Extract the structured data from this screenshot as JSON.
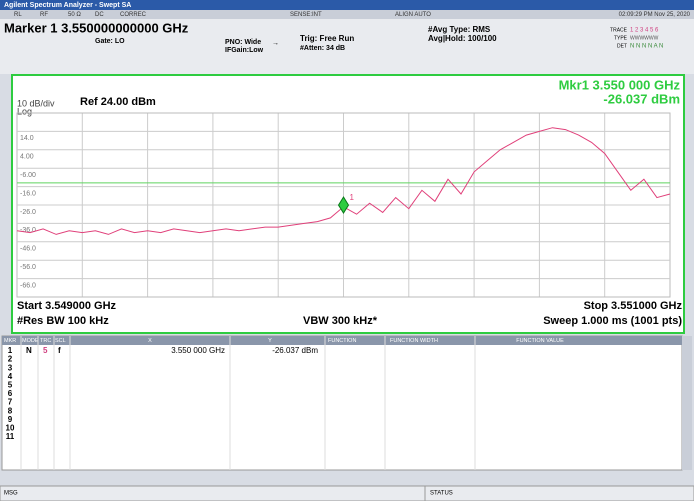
{
  "title_bar": "Agilent Spectrum Analyzer - Swept SA",
  "status_bar": {
    "items": [
      "RL",
      "RF",
      "50 Ω",
      "DC",
      "CORREC",
      "SENSE:INT",
      "ALIGN AUTO"
    ],
    "datetime": "02:09:29 PM Nov 25, 2020"
  },
  "header": {
    "marker": "Marker 1 3.550000000000 GHz",
    "gate": "Gate: LO",
    "pno": "PNO: Wide",
    "ifgain": "IFGain:Low",
    "trig": "Trig: Free Run",
    "atten": "#Atten: 34 dB",
    "avg_type": "#Avg Type: RMS",
    "avg_hold": "Avg|Hold: 100/100",
    "trace_label": "TRACE",
    "trace_nums": "1 2 3 4 5 6",
    "type_label": "TYPE",
    "type_vals": "WWWWWW",
    "det_label": "DET",
    "det_vals": "N N N N A N"
  },
  "graph": {
    "mkr_freq": "Mkr1 3.550 000 GHz",
    "mkr_amp": "-26.037 dBm",
    "scale": "10 dB/div",
    "ref": "Ref 24.00 dBm",
    "log": "Log",
    "xlim": [
      3.549,
      3.551
    ],
    "ylim": [
      -76,
      24
    ],
    "yticks": [
      {
        "value": 14,
        "label": "14.0"
      },
      {
        "value": 4,
        "label": "4.00"
      },
      {
        "value": -6,
        "label": "-6.00"
      },
      {
        "value": -16,
        "label": "-16.0"
      },
      {
        "value": -26,
        "label": "-26.0"
      },
      {
        "value": -36,
        "label": "-36.0"
      },
      {
        "value": -46,
        "label": "-46.0"
      },
      {
        "value": -56,
        "label": "-56.0"
      },
      {
        "value": -66,
        "label": "-66.0"
      }
    ],
    "trace_color": "#e0407a",
    "trace": [
      -40,
      -41,
      -39,
      -42,
      -40,
      -41,
      -40,
      -42,
      -39,
      -41,
      -40,
      -41,
      -39,
      -40,
      -41,
      -40,
      -39,
      -40,
      -39,
      -38,
      -38,
      -37,
      -36,
      -35,
      -33,
      -27,
      -31,
      -25,
      -30,
      -22,
      -28,
      -18,
      -24,
      -12,
      -20,
      -8,
      -2,
      4,
      8,
      12,
      14,
      16,
      15,
      12,
      8,
      2,
      -8,
      -18,
      -12,
      -22,
      -20
    ],
    "display_line": -14,
    "marker": {
      "label": "1",
      "x": 3.55,
      "y": -26.037
    },
    "start": "Start 3.549000 GHz",
    "stop": "Stop 3.551000 GHz",
    "rbw": "#Res BW 100 kHz",
    "vbw": "VBW 300 kHz*",
    "sweep": "Sweep  1.000 ms (1001 pts)"
  },
  "table": {
    "headers": [
      "MKR",
      "MODE",
      "TRC",
      "SCL",
      "X",
      "Y",
      "FUNCTION",
      "FUNCTION WIDTH",
      "FUNCTION VALUE"
    ],
    "rows": [
      [
        "1",
        "N",
        "5",
        "f",
        "3.550 000 GHz",
        "-26.037 dBm"
      ],
      [
        "2"
      ],
      [
        "3"
      ],
      [
        "4"
      ],
      [
        "5"
      ],
      [
        "6"
      ],
      [
        "7"
      ],
      [
        "8"
      ],
      [
        "9"
      ],
      [
        "10"
      ],
      [
        "11"
      ]
    ]
  },
  "footer": {
    "msg": "MSG",
    "status": "STATUS"
  }
}
